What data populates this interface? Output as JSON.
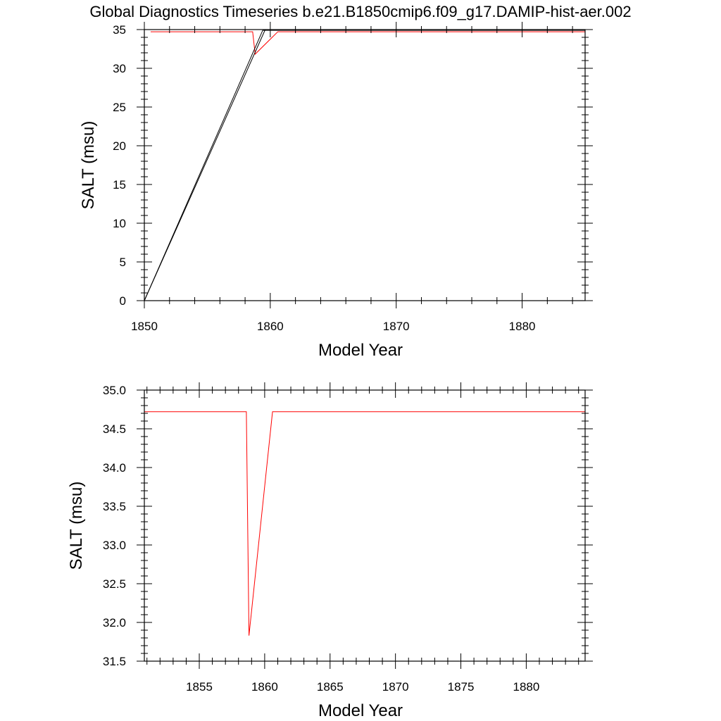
{
  "figure": {
    "title": "Global Diagnostics Timeseries b.e21.B1850cmip6.f09_g17.DAMIP-hist-aer.002"
  },
  "colors": {
    "series_red": "#ff0000",
    "series_black": "#000000",
    "axes": "#000000",
    "background": "#ffffff"
  },
  "chart_data": [
    {
      "type": "line",
      "title": "Global Diagnostics Timeseries b.e21.B1850cmip6.f09_g17.DAMIP-hist-aer.002",
      "xlabel": "Model Year",
      "ylabel": "SALT (msu)",
      "xlim": [
        1850,
        1885
      ],
      "ylim": [
        0,
        35
      ],
      "x_ticks": [
        1850,
        1860,
        1870,
        1880
      ],
      "x_tick_labels": [
        "1850",
        "1860",
        "1870",
        "1880"
      ],
      "y_ticks": [
        0,
        5,
        10,
        15,
        20,
        25,
        30,
        35
      ],
      "y_tick_labels": [
        "0",
        "5",
        "10",
        "15",
        "20",
        "25",
        "30",
        "35"
      ],
      "grid": false,
      "series": [
        {
          "color": "#ff0000",
          "x": [
            1850.5,
            1858.6,
            1858.8,
            1860.6,
            1885
          ],
          "y": [
            34.72,
            34.72,
            31.83,
            34.72,
            34.72
          ]
        },
        {
          "color": "#000000",
          "x": [
            1850,
            1859.4,
            1885
          ],
          "y": [
            0,
            34.9,
            34.9
          ]
        },
        {
          "color": "#000000",
          "x": [
            1850,
            1859.6,
            1885
          ],
          "y": [
            0,
            35.0,
            35.0
          ]
        }
      ]
    },
    {
      "type": "line",
      "title": "",
      "xlabel": "Model Year",
      "ylabel": "SALT (msu)",
      "xlim": [
        1850.8,
        1884.5
      ],
      "ylim": [
        31.5,
        35.0
      ],
      "x_ticks": [
        1855,
        1860,
        1865,
        1870,
        1875,
        1880
      ],
      "x_tick_labels": [
        "1855",
        "1860",
        "1865",
        "1870",
        "1875",
        "1880"
      ],
      "y_ticks": [
        31.5,
        32.0,
        32.5,
        33.0,
        33.5,
        34.0,
        34.5,
        35.0
      ],
      "y_tick_labels": [
        "31.5",
        "32.0",
        "32.5",
        "33.0",
        "33.5",
        "34.0",
        "34.5",
        "35.0"
      ],
      "grid": false,
      "series": [
        {
          "color": "#ff0000",
          "x": [
            1850.8,
            1858.6,
            1858.8,
            1860.6,
            1884.5
          ],
          "y": [
            34.72,
            34.72,
            31.83,
            34.72,
            34.72
          ]
        }
      ]
    }
  ]
}
